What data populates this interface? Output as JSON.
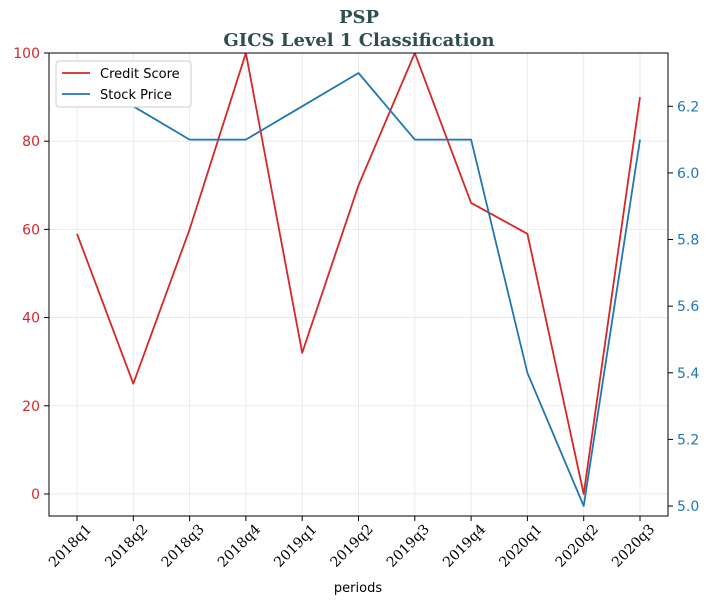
{
  "chart_data": {
    "type": "line",
    "title": "PSP",
    "subtitle": "GICS Level 1 Classification",
    "xlabel": "periods",
    "categories": [
      "2018q1",
      "2018q2",
      "2018q3",
      "2018q4",
      "2019q1",
      "2019q2",
      "2019q3",
      "2019q4",
      "2020q1",
      "2020q2",
      "2020q3"
    ],
    "series": [
      {
        "name": "Credit Score",
        "axis": "left",
        "color": "#d62728",
        "values": [
          59,
          25,
          60,
          100,
          32,
          70,
          100,
          66,
          59,
          0,
          90
        ]
      },
      {
        "name": "Stock Price",
        "axis": "right",
        "color": "#1f77b4",
        "values": [
          null,
          6.2,
          6.1,
          6.1,
          6.2,
          6.3,
          6.1,
          6.1,
          5.4,
          5.0,
          6.1
        ]
      }
    ],
    "ylim_left": [
      -5,
      100
    ],
    "yticks_left": [
      "0",
      "20",
      "40",
      "60",
      "80",
      "100"
    ],
    "ylim_right": [
      4.97,
      6.36
    ],
    "yticks_right": [
      "5.0",
      "5.2",
      "5.4",
      "5.6",
      "5.8",
      "6.0",
      "6.2"
    ],
    "grid": true,
    "legend_position": "top-left"
  }
}
